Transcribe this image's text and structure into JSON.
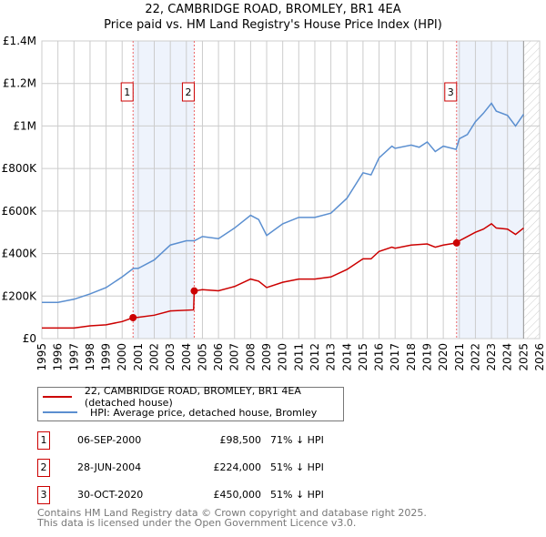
{
  "chart_data": {
    "type": "line",
    "title": "22, CAMBRIDGE ROAD, BROMLEY, BR1 4EA",
    "subtitle": "Price paid vs. HM Land Registry's House Price Index (HPI)",
    "xlim": [
      1995,
      2026
    ],
    "ylim": [
      0,
      1400000
    ],
    "x_ticks": [
      "1995",
      "1996",
      "1997",
      "1998",
      "1999",
      "2000",
      "2001",
      "2002",
      "2003",
      "2004",
      "2005",
      "2006",
      "2007",
      "2008",
      "2009",
      "2010",
      "2011",
      "2012",
      "2013",
      "2014",
      "2015",
      "2016",
      "2017",
      "2018",
      "2019",
      "2020",
      "2021",
      "2022",
      "2023",
      "2024",
      "2025",
      "2026"
    ],
    "y_ticks": [
      {
        "v": 0,
        "label": "£0"
      },
      {
        "v": 200000,
        "label": "£200K"
      },
      {
        "v": 400000,
        "label": "£400K"
      },
      {
        "v": 600000,
        "label": "£600K"
      },
      {
        "v": 800000,
        "label": "£800K"
      },
      {
        "v": 1000000,
        "label": "£1M"
      },
      {
        "v": 1200000,
        "label": "£1.2M"
      },
      {
        "v": 1400000,
        "label": "£1.4M"
      }
    ],
    "grid": true,
    "series": [
      {
        "name": "22, CAMBRIDGE ROAD, BROMLEY, BR1 4EA (detached house)",
        "color": "#cc0000",
        "points": [
          [
            1995,
            50000
          ],
          [
            1997,
            50000
          ],
          [
            1998,
            60000
          ],
          [
            1999,
            65000
          ],
          [
            2000,
            80000
          ],
          [
            2000.68,
            98500
          ],
          [
            2001,
            100000
          ],
          [
            2002,
            110000
          ],
          [
            2003,
            130000
          ],
          [
            2004.45,
            135000
          ],
          [
            2004.49,
            224000
          ],
          [
            2005,
            230000
          ],
          [
            2006,
            225000
          ],
          [
            2007,
            245000
          ],
          [
            2008,
            280000
          ],
          [
            2008.5,
            270000
          ],
          [
            2009,
            240000
          ],
          [
            2010,
            265000
          ],
          [
            2011,
            280000
          ],
          [
            2012,
            280000
          ],
          [
            2013,
            290000
          ],
          [
            2014,
            325000
          ],
          [
            2015,
            375000
          ],
          [
            2015.5,
            375000
          ],
          [
            2016,
            410000
          ],
          [
            2016.8,
            430000
          ],
          [
            2017,
            425000
          ],
          [
            2018,
            440000
          ],
          [
            2019,
            445000
          ],
          [
            2019.5,
            430000
          ],
          [
            2020,
            440000
          ],
          [
            2020.83,
            450000
          ],
          [
            2021,
            460000
          ],
          [
            2022,
            500000
          ],
          [
            2022.5,
            515000
          ],
          [
            2023,
            540000
          ],
          [
            2023.3,
            520000
          ],
          [
            2024,
            515000
          ],
          [
            2024.5,
            490000
          ],
          [
            2025,
            520000
          ]
        ]
      },
      {
        "name": "HPI: Average price, detached house, Bromley",
        "color": "#5b8fd0",
        "points": [
          [
            1995,
            170000
          ],
          [
            1996,
            170000
          ],
          [
            1997,
            185000
          ],
          [
            1998,
            210000
          ],
          [
            1999,
            240000
          ],
          [
            2000,
            290000
          ],
          [
            2000.7,
            330000
          ],
          [
            2001,
            330000
          ],
          [
            2002,
            370000
          ],
          [
            2003,
            440000
          ],
          [
            2004,
            460000
          ],
          [
            2004.5,
            460000
          ],
          [
            2005,
            480000
          ],
          [
            2006,
            470000
          ],
          [
            2007,
            520000
          ],
          [
            2008,
            580000
          ],
          [
            2008.5,
            560000
          ],
          [
            2009,
            485000
          ],
          [
            2010,
            540000
          ],
          [
            2011,
            570000
          ],
          [
            2012,
            570000
          ],
          [
            2013,
            590000
          ],
          [
            2014,
            660000
          ],
          [
            2015,
            780000
          ],
          [
            2015.5,
            770000
          ],
          [
            2016,
            850000
          ],
          [
            2016.8,
            905000
          ],
          [
            2017,
            895000
          ],
          [
            2018,
            910000
          ],
          [
            2018.5,
            900000
          ],
          [
            2019,
            925000
          ],
          [
            2019.5,
            880000
          ],
          [
            2020,
            905000
          ],
          [
            2020.8,
            890000
          ],
          [
            2021,
            940000
          ],
          [
            2021.5,
            960000
          ],
          [
            2022,
            1020000
          ],
          [
            2022.5,
            1060000
          ],
          [
            2023,
            1107000
          ],
          [
            2023.3,
            1070000
          ],
          [
            2024,
            1050000
          ],
          [
            2024.5,
            1000000
          ],
          [
            2025,
            1055000
          ]
        ]
      }
    ],
    "sales": [
      {
        "label": "1",
        "x": 2000.68,
        "y": 98500,
        "date": "06-SEP-2000",
        "price": "£98,500",
        "hpi": "71% ↓ HPI"
      },
      {
        "label": "2",
        "x": 2004.49,
        "y": 224000,
        "date": "28-JUN-2004",
        "price": "£224,000",
        "hpi": "51% ↓ HPI"
      },
      {
        "label": "3",
        "x": 2020.83,
        "y": 450000,
        "date": "30-OCT-2020",
        "price": "£450,000",
        "hpi": "51% ↓ HPI"
      }
    ],
    "shaded_ranges": [
      [
        2000.68,
        2004.49
      ],
      [
        2020.83,
        2025.0
      ]
    ],
    "forecast_hatch_from": 2025.0,
    "legend_placement": "below"
  },
  "footer": [
    "Contains HM Land Registry data © Crown copyright and database right 2025.",
    "This data is licensed under the Open Government Licence v3.0."
  ]
}
